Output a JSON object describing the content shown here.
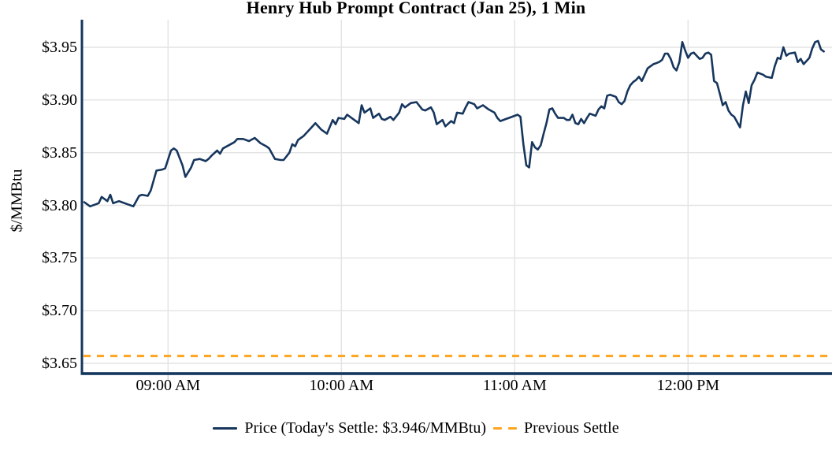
{
  "title": "Henry Hub Prompt Contract (Jan 25), 1 Min",
  "y_axis": {
    "label": "$/MMBtu"
  },
  "legend": {
    "price_label": "Price (Today's Settle: $3.946/MMBtu)",
    "previous_settle_label": "Previous Settle"
  },
  "colors": {
    "price_line": "#17365d",
    "previous_settle": "#FFA41E",
    "axis_spine": "#14365d",
    "gridline": "#e3e3e3",
    "tick_mark": "#cfcfcf"
  },
  "chart_data": {
    "type": "line",
    "title": "Henry Hub Prompt Contract (Jan 25), 1 Min",
    "xlabel": "",
    "ylabel": "$/MMBtu",
    "ylim": [
      3.638,
      3.976
    ],
    "grid": true,
    "legend_position": "bottom",
    "y_ticks": [
      {
        "label": "$3.95",
        "value": 3.95
      },
      {
        "label": "$3.90",
        "value": 3.9
      },
      {
        "label": "$3.85",
        "value": 3.85
      },
      {
        "label": "$3.80",
        "value": 3.8
      },
      {
        "label": "$3.75",
        "value": 3.75
      },
      {
        "label": "$3.70",
        "value": 3.7
      },
      {
        "label": "$3.65",
        "value": 3.65
      }
    ],
    "x_ticks": [
      {
        "label": "09:00 AM",
        "time": "09:00"
      },
      {
        "label": "10:00 AM",
        "time": "10:00"
      },
      {
        "label": "11:00 AM",
        "time": "11:00"
      },
      {
        "label": "12:00 PM",
        "time": "12:00"
      }
    ],
    "today_settle": 3.946,
    "series": [
      {
        "name": "Price (Today's Settle: $3.946/MMBtu)",
        "type": "line",
        "color": "#17365d",
        "points": [
          [
            "08:31",
            3.803
          ],
          [
            "08:33",
            3.799
          ],
          [
            "08:35",
            3.801
          ],
          [
            "08:36",
            3.802
          ],
          [
            "08:37",
            3.808
          ],
          [
            "08:39",
            3.804
          ],
          [
            "08:40",
            3.81
          ],
          [
            "08:41",
            3.802
          ],
          [
            "08:43",
            3.804
          ],
          [
            "08:44",
            3.803
          ],
          [
            "08:46",
            3.801
          ],
          [
            "08:48",
            3.799
          ],
          [
            "08:50",
            3.809
          ],
          [
            "08:51",
            3.81
          ],
          [
            "08:53",
            3.809
          ],
          [
            "08:54",
            3.814
          ],
          [
            "08:56",
            3.833
          ],
          [
            "08:58",
            3.834
          ],
          [
            "08:59",
            3.835
          ],
          [
            "09:01",
            3.852
          ],
          [
            "09:02",
            3.854
          ],
          [
            "09:03",
            3.852
          ],
          [
            "09:05",
            3.838
          ],
          [
            "09:06",
            3.827
          ],
          [
            "09:08",
            3.836
          ],
          [
            "09:09",
            3.843
          ],
          [
            "09:11",
            3.844
          ],
          [
            "09:13",
            3.842
          ],
          [
            "09:14",
            3.844
          ],
          [
            "09:15",
            3.847
          ],
          [
            "09:17",
            3.852
          ],
          [
            "09:18",
            3.849
          ],
          [
            "09:19",
            3.854
          ],
          [
            "09:21",
            3.857
          ],
          [
            "09:23",
            3.86
          ],
          [
            "09:24",
            3.863
          ],
          [
            "09:26",
            3.863
          ],
          [
            "09:28",
            3.861
          ],
          [
            "09:30",
            3.864
          ],
          [
            "09:32",
            3.859
          ],
          [
            "09:34",
            3.856
          ],
          [
            "09:35",
            3.854
          ],
          [
            "09:37",
            3.844
          ],
          [
            "09:39",
            3.843
          ],
          [
            "09:40",
            3.843
          ],
          [
            "09:42",
            3.85
          ],
          [
            "09:43",
            3.858
          ],
          [
            "09:44",
            3.856
          ],
          [
            "09:45",
            3.862
          ],
          [
            "09:47",
            3.866
          ],
          [
            "09:49",
            3.872
          ],
          [
            "09:51",
            3.878
          ],
          [
            "09:53",
            3.872
          ],
          [
            "09:55",
            3.868
          ],
          [
            "09:57",
            3.881
          ],
          [
            "09:58",
            3.877
          ],
          [
            "09:59",
            3.883
          ],
          [
            "10:01",
            3.882
          ],
          [
            "10:02",
            3.886
          ],
          [
            "10:04",
            3.882
          ],
          [
            "10:06",
            3.878
          ],
          [
            "10:07",
            3.895
          ],
          [
            "10:08",
            3.888
          ],
          [
            "10:10",
            3.892
          ],
          [
            "10:11",
            3.883
          ],
          [
            "10:13",
            3.887
          ],
          [
            "10:14",
            3.882
          ],
          [
            "10:15",
            3.881
          ],
          [
            "10:17",
            3.884
          ],
          [
            "10:18",
            3.881
          ],
          [
            "10:20",
            3.888
          ],
          [
            "10:21",
            3.896
          ],
          [
            "10:22",
            3.893
          ],
          [
            "10:24",
            3.897
          ],
          [
            "10:26",
            3.898
          ],
          [
            "10:28",
            3.891
          ],
          [
            "10:29",
            3.89
          ],
          [
            "10:31",
            3.893
          ],
          [
            "10:32",
            3.888
          ],
          [
            "10:33",
            3.877
          ],
          [
            "10:35",
            3.881
          ],
          [
            "10:36",
            3.875
          ],
          [
            "10:38",
            3.88
          ],
          [
            "10:39",
            3.878
          ],
          [
            "10:40",
            3.888
          ],
          [
            "10:42",
            3.887
          ],
          [
            "10:43",
            3.893
          ],
          [
            "10:44",
            3.898
          ],
          [
            "10:46",
            3.896
          ],
          [
            "10:47",
            3.892
          ],
          [
            "10:49",
            3.895
          ],
          [
            "10:50",
            3.893
          ],
          [
            "10:51",
            3.891
          ],
          [
            "10:53",
            3.888
          ],
          [
            "10:54",
            3.883
          ],
          [
            "10:55",
            3.88
          ],
          [
            "10:57",
            3.882
          ],
          [
            "10:58",
            3.883
          ],
          [
            "11:00",
            3.885
          ],
          [
            "11:01",
            3.886
          ],
          [
            "11:02",
            3.884
          ],
          [
            "11:03",
            3.858
          ],
          [
            "11:04",
            3.838
          ],
          [
            "11:05",
            3.836
          ],
          [
            "11:06",
            3.86
          ],
          [
            "11:07",
            3.855
          ],
          [
            "11:08",
            3.853
          ],
          [
            "11:09",
            3.857
          ],
          [
            "11:10",
            3.868
          ],
          [
            "11:11",
            3.878
          ],
          [
            "11:12",
            3.891
          ],
          [
            "11:13",
            3.892
          ],
          [
            "11:14",
            3.887
          ],
          [
            "11:15",
            3.883
          ],
          [
            "11:17",
            3.883
          ],
          [
            "11:18",
            3.881
          ],
          [
            "11:19",
            3.881
          ],
          [
            "11:20",
            3.886
          ],
          [
            "11:21",
            3.878
          ],
          [
            "11:22",
            3.877
          ],
          [
            "11:23",
            3.882
          ],
          [
            "11:24",
            3.878
          ],
          [
            "11:25",
            3.883
          ],
          [
            "11:26",
            3.887
          ],
          [
            "11:28",
            3.885
          ],
          [
            "11:29",
            3.891
          ],
          [
            "11:30",
            3.894
          ],
          [
            "11:31",
            3.892
          ],
          [
            "11:32",
            3.904
          ],
          [
            "11:33",
            3.905
          ],
          [
            "11:34",
            3.904
          ],
          [
            "11:35",
            3.903
          ],
          [
            "11:36",
            3.898
          ],
          [
            "11:37",
            3.896
          ],
          [
            "11:38",
            3.899
          ],
          [
            "11:39",
            3.908
          ],
          [
            "11:40",
            3.914
          ],
          [
            "11:41",
            3.917
          ],
          [
            "11:42",
            3.919
          ],
          [
            "11:43",
            3.922
          ],
          [
            "11:44",
            3.918
          ],
          [
            "11:45",
            3.924
          ],
          [
            "11:46",
            3.93
          ],
          [
            "11:47",
            3.932
          ],
          [
            "11:48",
            3.934
          ],
          [
            "11:49",
            3.935
          ],
          [
            "11:50",
            3.936
          ],
          [
            "11:51",
            3.938
          ],
          [
            "11:52",
            3.944
          ],
          [
            "11:53",
            3.944
          ],
          [
            "11:54",
            3.939
          ],
          [
            "11:55",
            3.931
          ],
          [
            "11:56",
            3.928
          ],
          [
            "11:57",
            3.936
          ],
          [
            "11:58",
            3.955
          ],
          [
            "11:59",
            3.947
          ],
          [
            "12:00",
            3.94
          ],
          [
            "12:01",
            3.944
          ],
          [
            "12:02",
            3.945
          ],
          [
            "12:04",
            3.939
          ],
          [
            "12:05",
            3.94
          ],
          [
            "12:06",
            3.944
          ],
          [
            "12:07",
            3.945
          ],
          [
            "12:08",
            3.943
          ],
          [
            "12:09",
            3.918
          ],
          [
            "12:10",
            3.916
          ],
          [
            "12:11",
            3.906
          ],
          [
            "12:12",
            3.895
          ],
          [
            "12:13",
            3.898
          ],
          [
            "12:14",
            3.89
          ],
          [
            "12:15",
            3.886
          ],
          [
            "12:16",
            3.884
          ],
          [
            "12:17",
            3.879
          ],
          [
            "12:18",
            3.874
          ],
          [
            "12:19",
            3.895
          ],
          [
            "12:20",
            3.908
          ],
          [
            "12:21",
            3.897
          ],
          [
            "12:22",
            3.914
          ],
          [
            "12:23",
            3.919
          ],
          [
            "12:24",
            3.926
          ],
          [
            "12:25",
            3.925
          ],
          [
            "12:26",
            3.924
          ],
          [
            "12:27",
            3.922
          ],
          [
            "12:29",
            3.921
          ],
          [
            "12:30",
            3.932
          ],
          [
            "12:31",
            3.94
          ],
          [
            "12:32",
            3.939
          ],
          [
            "12:33",
            3.95
          ],
          [
            "12:34",
            3.942
          ],
          [
            "12:35",
            3.944
          ],
          [
            "12:37",
            3.945
          ],
          [
            "12:38",
            3.936
          ],
          [
            "12:39",
            3.939
          ],
          [
            "12:40",
            3.934
          ],
          [
            "12:42",
            3.94
          ],
          [
            "12:43",
            3.949
          ],
          [
            "12:44",
            3.955
          ],
          [
            "12:45",
            3.956
          ],
          [
            "12:46",
            3.948
          ],
          [
            "12:47",
            3.946
          ]
        ]
      },
      {
        "name": "Previous Settle",
        "type": "dashed-horizontal-line",
        "color": "#FFA41E",
        "value": 3.657
      }
    ]
  }
}
